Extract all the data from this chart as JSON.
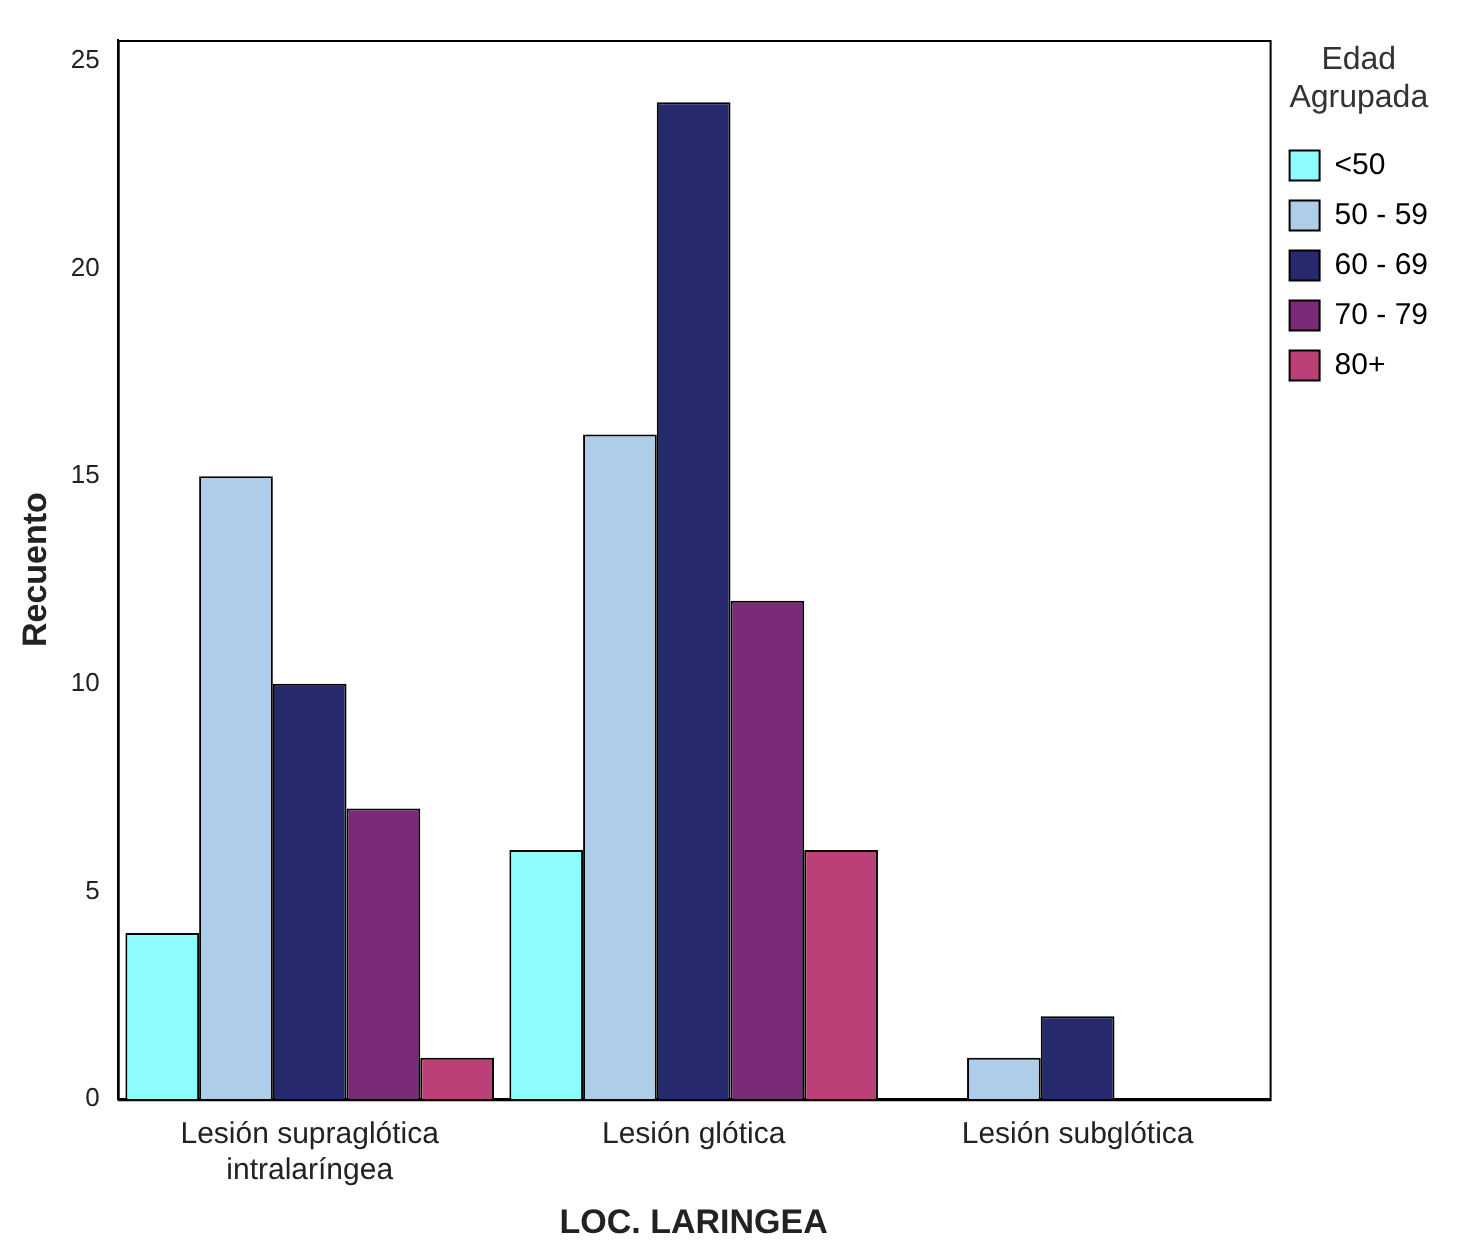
{
  "chart_data": {
    "type": "bar",
    "xlabel": "LOC. LARINGEA",
    "ylabel": "Recuento",
    "legend_title": "Edad Agrupada",
    "categories": [
      "Lesión supraglótica intralaríngea",
      "Lesión glótica",
      "Lesión subglótica"
    ],
    "series": [
      {
        "name": "<50",
        "color": "#8efcfc",
        "values": [
          4,
          6,
          null
        ]
      },
      {
        "name": "50 - 59",
        "color": "#aecde9",
        "values": [
          15,
          16,
          1
        ]
      },
      {
        "name": "60 - 69",
        "color": "#27296e",
        "values": [
          10,
          24,
          2
        ]
      },
      {
        "name": "70 - 79",
        "color": "#7a2a76",
        "values": [
          7,
          12,
          null
        ]
      },
      {
        "name": "80+",
        "color": "#bd3f78",
        "values": [
          1,
          6,
          null
        ]
      }
    ],
    "ylim": [
      0,
      25.5
    ],
    "yticks": [
      0,
      5,
      10,
      15,
      20,
      25
    ],
    "grid": false,
    "legend": "top right"
  }
}
